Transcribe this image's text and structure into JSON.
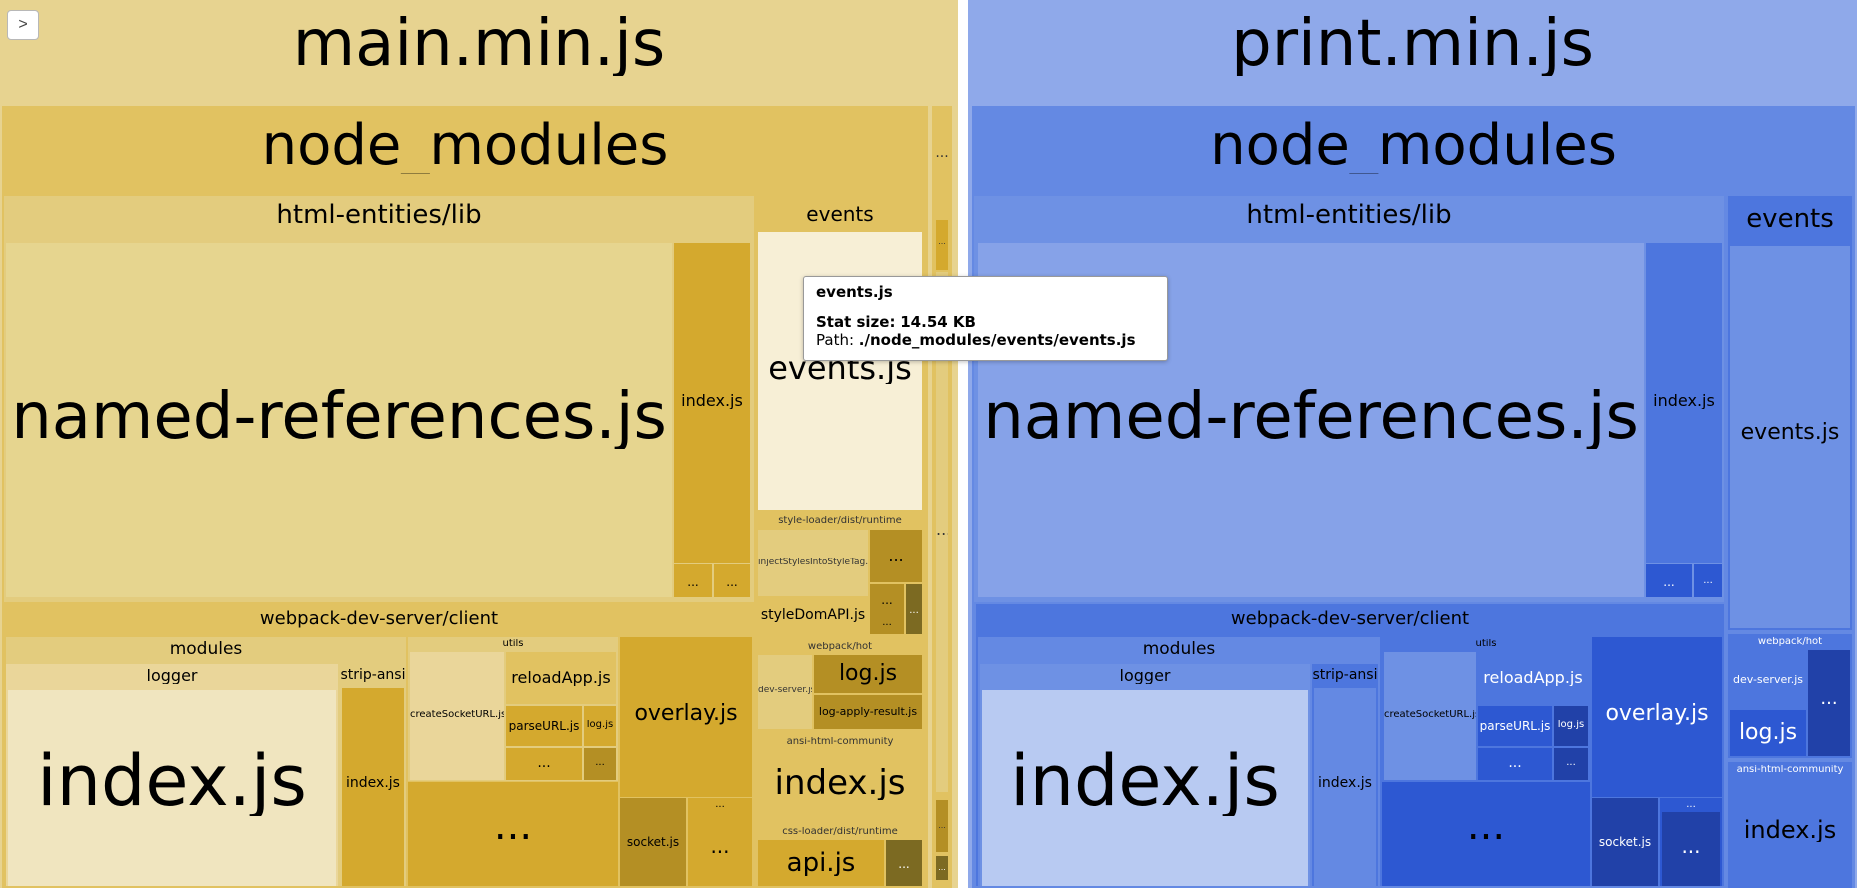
{
  "sidebar_toggle": {
    "label": ">"
  },
  "tooltip": {
    "title": "events.js",
    "stat_label": "Stat size:",
    "stat_value": "14.54 KB",
    "path_label": "Path:",
    "path_value": "./node_modules/events/events.js"
  },
  "colors": {
    "main": {
      "bg": "#e7d390",
      "l1": "#e1c261",
      "l2": "#e3cc7e",
      "l3": "#ead69a",
      "leaf": "#e6d58f",
      "dark": "#d4a92e",
      "darker": "#b48f24",
      "darkest": "#7c6a22",
      "light": "#f0e5bf",
      "highlight": "#f7efd6"
    },
    "print": {
      "bg": "#8fa9ea",
      "l1": "#6489e3",
      "l2": "#6e91e4",
      "l3": "#4d76de",
      "leaf": "#86a2e8",
      "dark": "#2d58d2",
      "darker": "#2141a8",
      "light": "#b8caf2"
    }
  },
  "bundles": {
    "main": {
      "title": "main.min.js",
      "node_modules": "node_modules",
      "html_entities": "html-entities/lib",
      "named_refs": "named-references.js",
      "index_js": "index.js",
      "ellipsis": "...",
      "events_group": "events",
      "events_file": "events.js",
      "style_loader": "style-loader/dist/runtime",
      "inject_styles": "injectStylesIntoStyleTag.js",
      "style_dom_api": "styleDomAPI.js",
      "wds_client": "webpack-dev-server/client",
      "modules": "modules",
      "logger": "logger",
      "strip_ansi": "strip-ansi",
      "utils": "utils",
      "create_socket_url": "createSocketURL.js",
      "reload_app": "reloadApp.js",
      "parse_url": "parseURL.js",
      "log_js": "log.js",
      "overlay": "overlay.js",
      "socket": "socket.js",
      "webpack_hot": "webpack/hot",
      "dev_server": "dev-server.js",
      "log_apply_result": "log-apply-result.js",
      "ansi_html": "ansi-html-community",
      "css_loader": "css-loader/dist/runtime",
      "api_js": "api.js"
    },
    "print": {
      "title": "print.min.js",
      "node_modules": "node_modules",
      "html_entities": "html-entities/lib",
      "named_refs": "named-references.js",
      "index_js": "index.js",
      "ellipsis": "...",
      "events_group": "events",
      "events_file": "events.js",
      "wds_client": "webpack-dev-server/client",
      "modules": "modules",
      "logger": "logger",
      "strip_ansi": "strip-ansi",
      "utils": "utils",
      "create_socket_url": "createSocketURL.js",
      "reload_app": "reloadApp.js",
      "parse_url": "parseURL.js",
      "log_js": "log.js",
      "overlay": "overlay.js",
      "socket": "socket.js",
      "webpack_hot": "webpack/hot",
      "dev_server": "dev-server.js",
      "ansi_html": "ansi-html-community"
    }
  }
}
